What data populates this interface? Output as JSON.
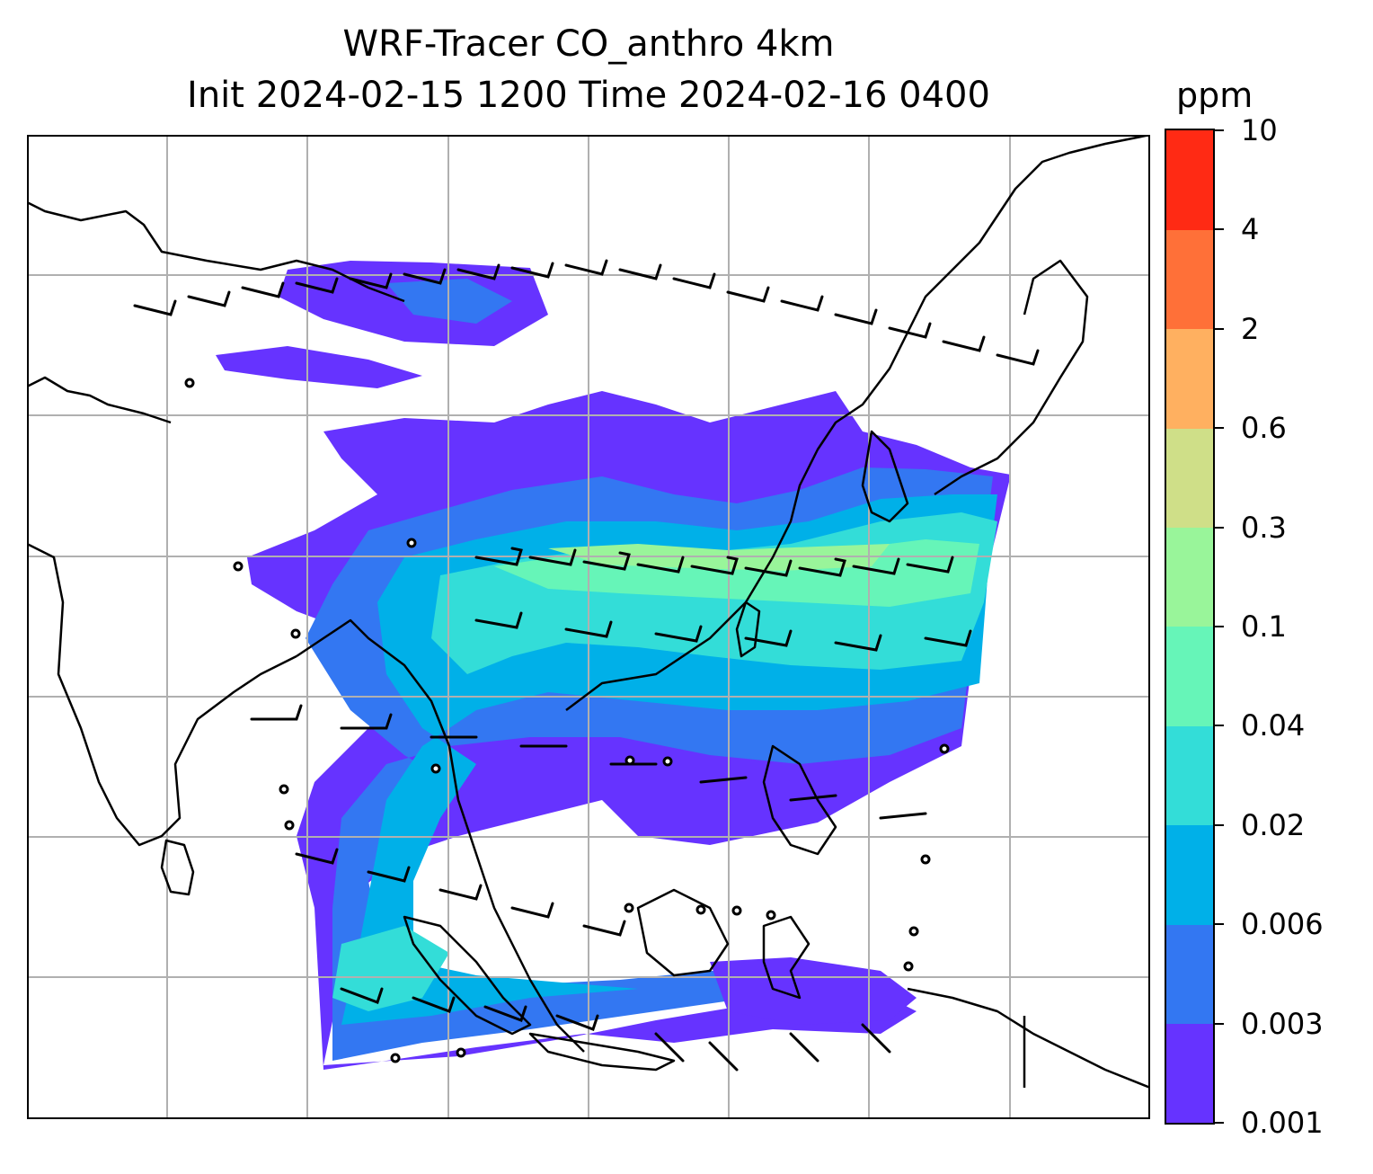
{
  "title": {
    "line1": "WRF-Tracer CO_anthro 4km",
    "line2": "Init 2024-02-15 1200 Time 2024-02-16 0400"
  },
  "colorbar": {
    "unit": "ppm",
    "levels": [
      "0.001",
      "0.003",
      "0.006",
      "0.02",
      "0.04",
      "0.1",
      "0.3",
      "0.6",
      "2",
      "4",
      "10"
    ],
    "colors": [
      "#6633ff",
      "#3377f2",
      "#00b0e8",
      "#33ddd8",
      "#66f5b8",
      "#99f59a",
      "#cfdf88",
      "#ffb060",
      "#ff7038",
      "#ff2a14"
    ]
  },
  "map": {
    "gridline_color": "#b0b0b0",
    "coastline_color": "#000000",
    "barb_color": "#000000",
    "background": "#ffffff"
  }
}
